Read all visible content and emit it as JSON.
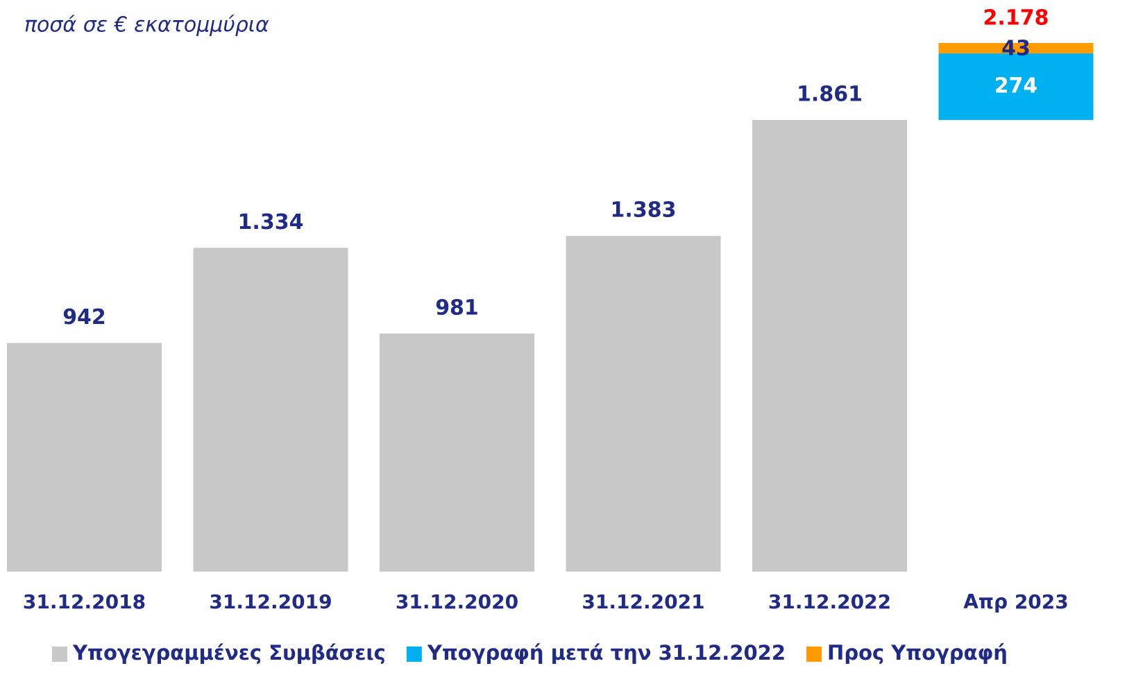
{
  "chart_data": {
    "type": "waterfall",
    "subtitle": "ποσά σε € εκατομμύρια",
    "categories": [
      "31.12.2018",
      "31.12.2019",
      "31.12.2020",
      "31.12.2021",
      "31.12.2022",
      "Απρ 2023"
    ],
    "series": [
      {
        "name": "Υπογεγραμμένες Συμβάσεις",
        "color": "#c8c8c8",
        "label_color": "#202a87",
        "values": [
          942,
          1334,
          981,
          1383,
          1861,
          null
        ],
        "value_labels": [
          "942",
          "1.334",
          "981",
          "1.383",
          "1.861",
          null
        ]
      },
      {
        "name": "Υπογραφή μετά την 31.12.2022",
        "color": "#00b0f0",
        "label_color": "#ffffff",
        "values": [
          null,
          null,
          null,
          null,
          null,
          274
        ],
        "value_labels": [
          null,
          null,
          null,
          null,
          null,
          "274"
        ]
      },
      {
        "name": "Προς Υπογραφή",
        "color": "#ff9a00",
        "label_color": "#202a87",
        "values": [
          null,
          null,
          null,
          null,
          null,
          43
        ],
        "value_labels": [
          null,
          null,
          null,
          null,
          null,
          "43"
        ]
      }
    ],
    "totals": [
      null,
      null,
      null,
      null,
      null,
      2178
    ],
    "total_labels": [
      null,
      null,
      null,
      null,
      null,
      "2.178"
    ],
    "total_color": "#ff0000",
    "legend": "bottom"
  }
}
